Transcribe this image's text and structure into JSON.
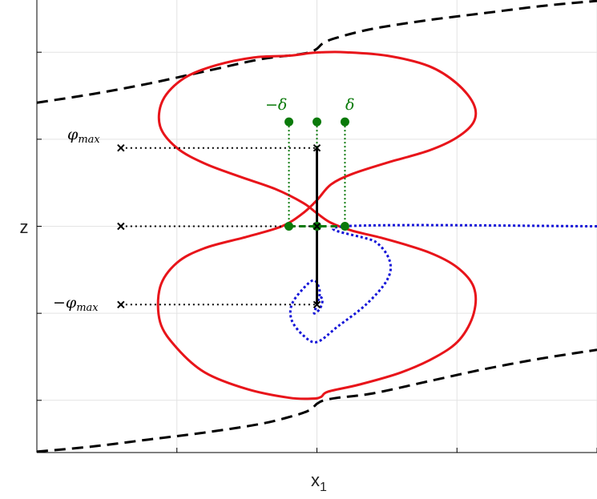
{
  "chart_data": {
    "type": "line",
    "xlabel": "x",
    "xlabel_subscript": "1",
    "ylabel": "z",
    "xlim": [
      -2,
      2
    ],
    "ylim": [
      -2.6,
      2.6
    ],
    "grid": true,
    "tick_labels_visible": false,
    "x_ticks": [
      -2,
      -1,
      0,
      1,
      2
    ],
    "y_ticks": [
      -2,
      -1,
      0,
      1,
      2
    ],
    "colors": {
      "separatrix": "#000000",
      "trajectory": "#e8141a",
      "delta_set": "#0a7a0a",
      "region": "#1414d8",
      "grid": "#e3e3e3",
      "axes": "#000000"
    },
    "delta": 0.2,
    "phi_max": 0.9,
    "annotations": {
      "phi_max": "φ",
      "phi_max_sub": "max",
      "neg_phi_max": "−φ",
      "neg_phi_max_sub": "max",
      "neg_delta": "−δ",
      "delta": "δ"
    },
    "series": [
      {
        "id": "upper-separatrix",
        "style": "dashed",
        "points": [
          [
            -2.0,
            1.42
          ],
          [
            -1.6,
            1.52
          ],
          [
            -1.2,
            1.64
          ],
          [
            -0.8,
            1.78
          ],
          [
            -0.4,
            1.92
          ],
          [
            -0.15,
            1.97
          ],
          [
            -0.05,
            2.0
          ],
          [
            0.0,
            2.04
          ],
          [
            0.05,
            2.11
          ],
          [
            0.15,
            2.17
          ],
          [
            0.4,
            2.27
          ],
          [
            0.8,
            2.37
          ],
          [
            1.2,
            2.45
          ],
          [
            1.6,
            2.53
          ],
          [
            2.0,
            2.59
          ]
        ]
      },
      {
        "id": "lower-separatrix",
        "style": "dashed",
        "points": [
          [
            -2.0,
            -2.59
          ],
          [
            -1.6,
            -2.53
          ],
          [
            -1.2,
            -2.45
          ],
          [
            -0.8,
            -2.37
          ],
          [
            -0.4,
            -2.27
          ],
          [
            -0.15,
            -2.17
          ],
          [
            -0.05,
            -2.11
          ],
          [
            0.0,
            -2.04
          ],
          [
            0.05,
            -2.0
          ],
          [
            0.15,
            -1.97
          ],
          [
            0.4,
            -1.92
          ],
          [
            0.8,
            -1.78
          ],
          [
            1.2,
            -1.64
          ],
          [
            1.6,
            -1.52
          ],
          [
            2.0,
            -1.42
          ]
        ]
      },
      {
        "id": "trajectory",
        "style": "solid",
        "points": [
          [
            0.03,
            2.0
          ],
          [
            0.2,
            2.0
          ],
          [
            0.5,
            1.96
          ],
          [
            0.8,
            1.84
          ],
          [
            1.0,
            1.64
          ],
          [
            1.12,
            1.4
          ],
          [
            1.12,
            1.2
          ],
          [
            1.0,
            1.02
          ],
          [
            0.8,
            0.87
          ],
          [
            0.5,
            0.73
          ],
          [
            0.25,
            0.6
          ],
          [
            0.1,
            0.48
          ],
          [
            0.0,
            0.3
          ],
          [
            -0.1,
            0.15
          ],
          [
            -0.25,
            0.0
          ],
          [
            -0.5,
            -0.12
          ],
          [
            -0.8,
            -0.25
          ],
          [
            -1.0,
            -0.42
          ],
          [
            -1.12,
            -0.7
          ],
          [
            -1.12,
            -1.1
          ],
          [
            -1.0,
            -1.4
          ],
          [
            -0.8,
            -1.68
          ],
          [
            -0.5,
            -1.87
          ],
          [
            -0.2,
            -1.97
          ],
          [
            -0.03,
            -1.98
          ],
          [
            0.03,
            -1.96
          ],
          [
            0.08,
            -1.9
          ],
          [
            0.3,
            -1.82
          ],
          [
            0.6,
            -1.68
          ],
          [
            0.85,
            -1.5
          ],
          [
            1.02,
            -1.3
          ],
          [
            1.12,
            -1.0
          ],
          [
            1.12,
            -0.7
          ],
          [
            1.0,
            -0.47
          ],
          [
            0.8,
            -0.3
          ],
          [
            0.5,
            -0.15
          ],
          [
            0.25,
            -0.05
          ],
          [
            0.1,
            0.04
          ],
          [
            0.0,
            0.15
          ],
          [
            -0.1,
            0.27
          ],
          [
            -0.3,
            0.43
          ],
          [
            -0.55,
            0.57
          ],
          [
            -0.8,
            0.72
          ],
          [
            -1.0,
            0.9
          ],
          [
            -1.12,
            1.15
          ],
          [
            -1.1,
            1.45
          ],
          [
            -0.95,
            1.7
          ],
          [
            -0.72,
            1.85
          ],
          [
            -0.45,
            1.94
          ],
          [
            -0.2,
            1.96
          ],
          [
            -0.05,
            1.99
          ],
          [
            0.03,
            2.0
          ]
        ]
      },
      {
        "id": "region-boundary",
        "style": "dotted",
        "points": [
          [
            2.0,
            0.0
          ],
          [
            0.2,
            0.0
          ],
          [
            0.42,
            -0.18
          ],
          [
            0.52,
            -0.4
          ],
          [
            0.5,
            -0.62
          ],
          [
            0.35,
            -0.9
          ],
          [
            0.15,
            -1.15
          ],
          [
            0.0,
            -1.33
          ],
          [
            -0.1,
            -1.25
          ],
          [
            -0.18,
            -1.08
          ],
          [
            -0.18,
            -0.9
          ],
          [
            -0.1,
            -0.72
          ],
          [
            -0.02,
            -0.62
          ],
          [
            0.02,
            -0.75
          ],
          [
            0.0,
            -0.9
          ],
          [
            -0.02,
            -1.0
          ],
          [
            0.02,
            -0.95
          ],
          [
            0.04,
            -0.85
          ],
          [
            0.02,
            -0.8
          ]
        ]
      }
    ],
    "markers": {
      "phi_max_endpoints": [
        [
          -1.4,
          0.9
        ],
        [
          0.0,
          0.9
        ],
        [
          -1.4,
          0.0
        ],
        [
          0.0,
          0.0
        ],
        [
          -1.4,
          -0.9
        ],
        [
          0.0,
          -0.9
        ]
      ],
      "delta_top": [
        [
          -0.2,
          1.2
        ],
        [
          0.0,
          1.2
        ],
        [
          0.2,
          1.2
        ]
      ],
      "delta_bottom": [
        [
          -0.2,
          0.0
        ],
        [
          0.0,
          0.0
        ],
        [
          0.2,
          0.0
        ]
      ]
    },
    "guide_lines": {
      "horizontal": [
        [
          -1.4,
          0.9,
          0.0,
          0.9
        ],
        [
          -1.4,
          0.0,
          0.0,
          0.0
        ],
        [
          -1.4,
          -0.9,
          0.0,
          -0.9
        ]
      ],
      "vertical_green": [
        [
          -0.2,
          1.2,
          -0.2,
          0.0
        ],
        [
          0.0,
          1.2,
          0.0,
          0.9
        ],
        [
          0.2,
          1.2,
          0.2,
          0.0
        ]
      ],
      "solid_segment": [
        0.0,
        0.9,
        0.0,
        -0.9
      ],
      "green_dashed": [
        -0.2,
        0.0,
        0.2,
        0.0
      ]
    }
  }
}
